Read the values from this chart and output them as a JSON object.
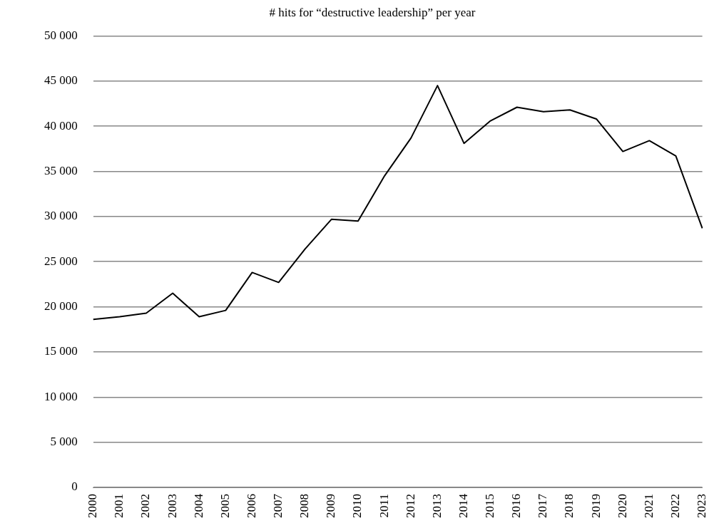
{
  "chart_data": {
    "type": "line",
    "title": "# hits for “destructive leadership” per year",
    "categories": [
      "2000",
      "2001",
      "2002",
      "2003",
      "2004",
      "2005",
      "2006",
      "2007",
      "2008",
      "2009",
      "2010",
      "2011",
      "2012",
      "2013",
      "2014",
      "2015",
      "2016",
      "2017",
      "2018",
      "2019",
      "2020",
      "2021",
      "2022",
      "2023"
    ],
    "series": [
      {
        "color": "#000000",
        "values": [
          18600,
          18900,
          19300,
          21500,
          18900,
          19600,
          23800,
          22700,
          26400,
          29700,
          29500,
          34500,
          38700,
          44500,
          38100,
          40600,
          42100,
          41600,
          41800,
          40800,
          37200,
          38400,
          36700,
          28700
        ]
      }
    ],
    "ylim": [
      0,
      50000
    ],
    "yticks": [
      0,
      {
        "value": 5000,
        "label": "5 000"
      },
      {
        "value": 10000,
        "label": "10 000"
      },
      {
        "value": 15000,
        "label": "15 000"
      },
      {
        "value": 20000,
        "label": "20 000"
      },
      {
        "value": 25000,
        "label": "25 000"
      },
      {
        "value": 30000,
        "label": "30 000"
      },
      {
        "value": 35000,
        "label": "35 000"
      },
      {
        "value": 40000,
        "label": "40 000"
      },
      {
        "value": 45000,
        "label": "45 000"
      },
      {
        "value": 50000,
        "label": "50 000"
      }
    ],
    "grid": "y",
    "legend": false,
    "marker": "none",
    "line_style": "solid"
  }
}
